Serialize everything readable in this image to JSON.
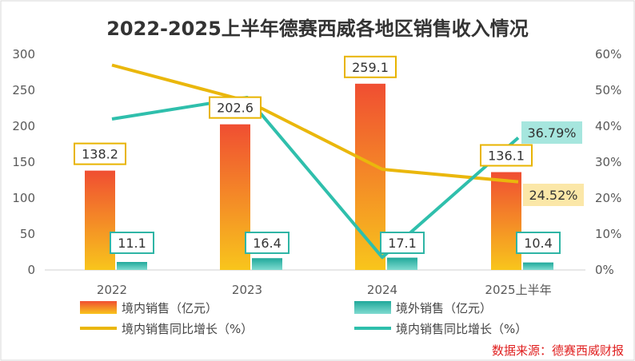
{
  "chart_data": {
    "type": "bar+line",
    "title": "2022-2025上半年德赛西威各地区销售收入情况",
    "categories": [
      "2022",
      "2023",
      "2024",
      "2025上半年"
    ],
    "bar_series": [
      {
        "name": "境内销售（亿元）",
        "values": [
          138.2,
          202.6,
          259.1,
          136.1
        ],
        "labels": [
          "138.2",
          "202.6",
          "259.1",
          "136.1"
        ]
      },
      {
        "name": "境外销售（亿元）",
        "values": [
          11.1,
          16.4,
          17.1,
          10.4
        ],
        "labels": [
          "11.1",
          "16.4",
          "17.1",
          "10.4"
        ]
      }
    ],
    "line_series": [
      {
        "name": "境内销售同比增长（%）",
        "values": [
          57,
          47,
          28,
          24.52
        ],
        "end_label": "24.52%"
      },
      {
        "name": "境内销售同比增长（%）",
        "values": [
          42,
          48,
          3.5,
          36.79
        ],
        "end_label": "36.79%"
      }
    ],
    "y_left": {
      "min": 0,
      "max": 300,
      "ticks": [
        "0",
        "50",
        "100",
        "150",
        "200",
        "250",
        "300"
      ]
    },
    "y_right": {
      "min": 0,
      "max": 60,
      "ticks": [
        "0%",
        "10%",
        "20%",
        "30%",
        "40%",
        "50%",
        "60%"
      ]
    },
    "colors": {
      "bar1_top": "#f04e32",
      "bar1_bottom": "#f8c51c",
      "bar2_top": "#1fa89a",
      "bar2_bottom": "#7fdbd0",
      "line1": "#eab70c",
      "line2": "#2fbfac",
      "label1_border": "#e8b400",
      "label2_border": "#2fb5a5",
      "end1_bg": "#fbe7a8",
      "end2_bg": "#a6e6de"
    },
    "source": "数据来源：德赛西威财报"
  }
}
